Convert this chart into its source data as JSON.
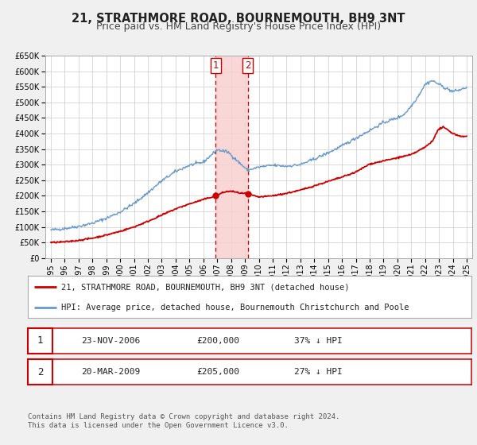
{
  "title": "21, STRATHMORE ROAD, BOURNEMOUTH, BH9 3NT",
  "subtitle": "Price paid vs. HM Land Registry's House Price Index (HPI)",
  "ylim": [
    0,
    650000
  ],
  "yticks": [
    0,
    50000,
    100000,
    150000,
    200000,
    250000,
    300000,
    350000,
    400000,
    450000,
    500000,
    550000,
    600000,
    650000
  ],
  "xlim_start": 1994.6,
  "xlim_end": 2025.4,
  "background_color": "#f0f0f0",
  "plot_bg_color": "#ffffff",
  "grid_color": "#cccccc",
  "red_line_color": "#cc0000",
  "blue_line_color": "#6699cc",
  "vline1_x": 2006.9,
  "vline2_x": 2009.2,
  "vline_color": "#cc0000",
  "shade_color": "#f8d0d0",
  "point1_x": 2006.9,
  "point1_y": 200000,
  "point2_x": 2009.2,
  "point2_y": 205000,
  "legend_label_red": "21, STRATHMORE ROAD, BOURNEMOUTH, BH9 3NT (detached house)",
  "legend_label_blue": "HPI: Average price, detached house, Bournemouth Christchurch and Poole",
  "table_row1": [
    "1",
    "23-NOV-2006",
    "£200,000",
    "37% ↓ HPI"
  ],
  "table_row2": [
    "2",
    "20-MAR-2009",
    "£205,000",
    "27% ↓ HPI"
  ],
  "footnote1": "Contains HM Land Registry data © Crown copyright and database right 2024.",
  "footnote2": "This data is licensed under the Open Government Licence v3.0.",
  "title_fontsize": 10.5,
  "subtitle_fontsize": 9,
  "tick_fontsize": 7,
  "legend_fontsize": 7.5,
  "table_fontsize": 8,
  "footnote_fontsize": 6.5,
  "hpi_anchors_x": [
    1995.0,
    1996.0,
    1997.0,
    1998.0,
    1999.0,
    2000.0,
    2001.0,
    2002.0,
    2003.0,
    2004.0,
    2005.0,
    2006.0,
    2007.0,
    2007.8,
    2008.5,
    2009.2,
    2010.0,
    2011.0,
    2012.0,
    2013.0,
    2014.0,
    2015.0,
    2016.0,
    2017.0,
    2018.0,
    2019.0,
    2020.0,
    2020.5,
    2021.0,
    2021.5,
    2022.0,
    2022.5,
    2023.0,
    2023.5,
    2024.0,
    2024.5,
    2025.0
  ],
  "hpi_anchors_y": [
    90000,
    95000,
    102000,
    112000,
    128000,
    148000,
    175000,
    210000,
    248000,
    278000,
    298000,
    308000,
    348000,
    340000,
    310000,
    282000,
    292000,
    298000,
    295000,
    300000,
    318000,
    338000,
    360000,
    385000,
    410000,
    435000,
    450000,
    462000,
    488000,
    520000,
    558000,
    570000,
    558000,
    545000,
    535000,
    540000,
    548000
  ],
  "red_anchors_x": [
    1995.0,
    1996.0,
    1997.0,
    1998.0,
    1999.0,
    2000.0,
    2001.0,
    2002.0,
    2003.0,
    2004.0,
    2005.0,
    2006.0,
    2006.9,
    2007.5,
    2008.0,
    2008.5,
    2009.0,
    2009.2,
    2010.0,
    2011.0,
    2012.0,
    2013.0,
    2014.0,
    2015.0,
    2016.0,
    2017.0,
    2018.0,
    2019.0,
    2020.0,
    2021.0,
    2022.0,
    2022.5,
    2023.0,
    2023.3,
    2023.7,
    2024.0,
    2024.5,
    2025.0
  ],
  "red_anchors_y": [
    50000,
    52000,
    57000,
    64000,
    74000,
    86000,
    100000,
    118000,
    138000,
    158000,
    174000,
    188000,
    200000,
    212000,
    215000,
    210000,
    207000,
    205000,
    196000,
    200000,
    208000,
    218000,
    232000,
    246000,
    260000,
    276000,
    302000,
    312000,
    322000,
    332000,
    356000,
    375000,
    415000,
    420000,
    410000,
    400000,
    392000,
    390000
  ]
}
